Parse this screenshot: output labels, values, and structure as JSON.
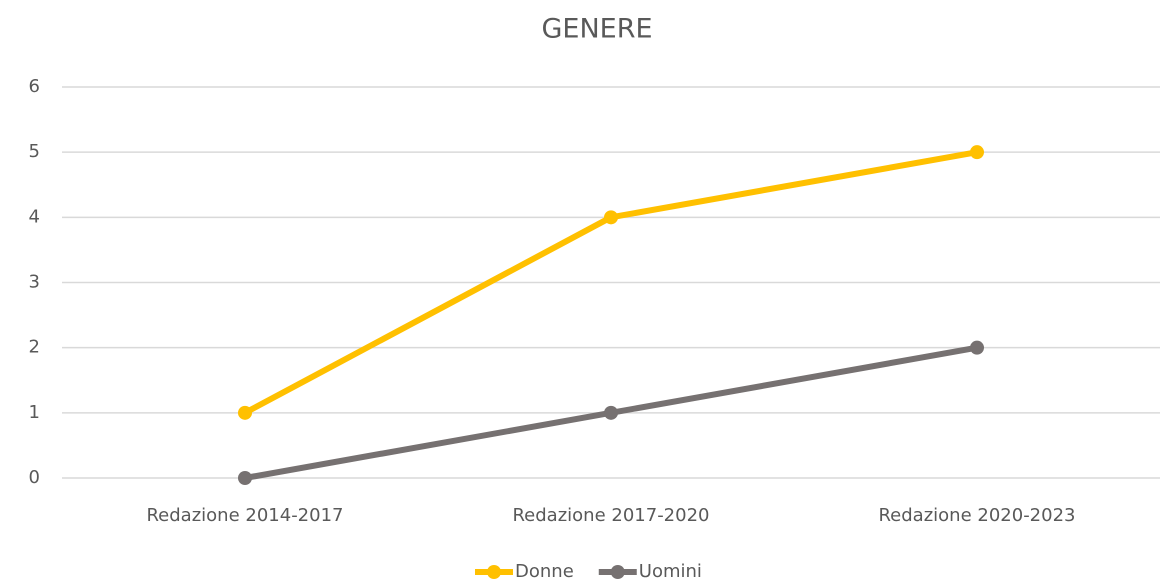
{
  "chart_data": {
    "type": "line",
    "title": "GENERE",
    "categories": [
      "Redazione 2014-2017",
      "Redazione 2017-2020",
      "Redazione 2020-2023"
    ],
    "series": [
      {
        "name": "Donne",
        "color": "#ffc000",
        "values": [
          1,
          4,
          5
        ]
      },
      {
        "name": "Uomini",
        "color": "#767171",
        "values": [
          0,
          1,
          2
        ]
      }
    ],
    "ylim": [
      0,
      6
    ],
    "yticks": [
      0,
      1,
      2,
      3,
      4,
      5,
      6
    ],
    "grid": true,
    "legend": "bottom"
  }
}
